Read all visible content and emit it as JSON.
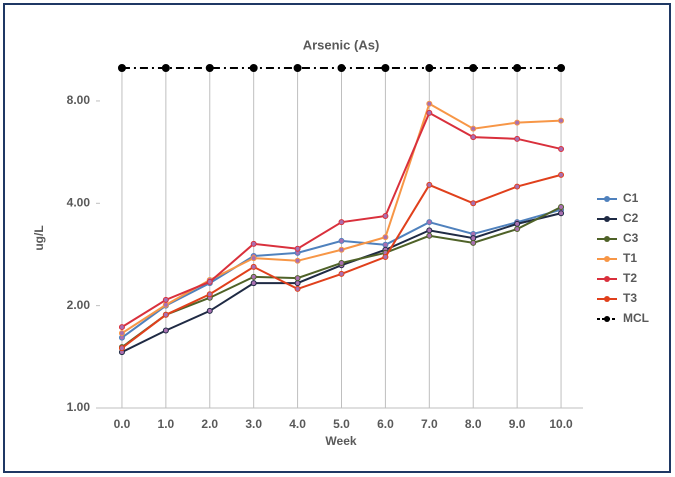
{
  "chart_data": {
    "type": "line",
    "title": "Arsenic  (As)",
    "x_label": "Week",
    "y_label": "ug/L",
    "log_scale_y": true,
    "grid_x": true,
    "legend": "right",
    "x": [
      0,
      1,
      2,
      3,
      4,
      5,
      6,
      7,
      8,
      9,
      10
    ],
    "xlim": [
      -0.5,
      10.5
    ],
    "xticks": [
      {
        "value": 0,
        "label": "0.0"
      },
      {
        "value": 1,
        "label": "1.0"
      },
      {
        "value": 2,
        "label": "2.0"
      },
      {
        "value": 3,
        "label": "3.0"
      },
      {
        "value": 4,
        "label": "4.0"
      },
      {
        "value": 5,
        "label": "5.0"
      },
      {
        "value": 6,
        "label": "6.0"
      },
      {
        "value": 7,
        "label": "7.0"
      },
      {
        "value": 8,
        "label": "8.0"
      },
      {
        "value": 9,
        "label": "9.0"
      },
      {
        "value": 10,
        "label": "10.0"
      }
    ],
    "ylim": [
      1,
      10
    ],
    "yticks": [
      {
        "value": 1,
        "label": "1.00"
      },
      {
        "value": 2,
        "label": "2.00"
      },
      {
        "value": 4,
        "label": "4.00"
      },
      {
        "value": 8,
        "label": "8.00"
      }
    ],
    "series": [
      {
        "name": "C1",
        "color": "#4f81bd",
        "line_style": "solid",
        "values": [
          1.61,
          2.0,
          2.33,
          2.8,
          2.86,
          3.1,
          3.02,
          3.52,
          3.25,
          3.52,
          3.83
        ]
      },
      {
        "name": "C2",
        "color": "#1f2a44",
        "line_style": "solid",
        "values": [
          1.46,
          1.69,
          1.93,
          2.33,
          2.33,
          2.63,
          2.92,
          3.33,
          3.16,
          3.48,
          3.74
        ]
      },
      {
        "name": "C3",
        "color": "#4f6228",
        "line_style": "solid",
        "values": [
          1.51,
          1.88,
          2.11,
          2.43,
          2.41,
          2.67,
          2.86,
          3.21,
          3.06,
          3.36,
          3.9
        ]
      },
      {
        "name": "T1",
        "color": "#f79646",
        "line_style": "solid",
        "values": [
          1.66,
          2.01,
          2.38,
          2.76,
          2.71,
          2.92,
          3.18,
          7.85,
          6.63,
          6.91,
          7.0
        ]
      },
      {
        "name": "T2",
        "color": "#d9303c",
        "line_style": "solid",
        "values": [
          1.73,
          2.08,
          2.35,
          3.04,
          2.94,
          3.52,
          3.67,
          7.38,
          6.26,
          6.19,
          5.78
        ]
      },
      {
        "name": "T3",
        "color": "#e0401c",
        "line_style": "solid",
        "values": [
          1.5,
          1.88,
          2.16,
          2.6,
          2.24,
          2.48,
          2.78,
          4.53,
          4.0,
          4.48,
          4.85
        ]
      },
      {
        "name": "MCL",
        "color": "#000000",
        "line_style": "dash-dot",
        "values": [
          10,
          10,
          10,
          10,
          10,
          10,
          10,
          10,
          10,
          10,
          10
        ]
      }
    ]
  }
}
